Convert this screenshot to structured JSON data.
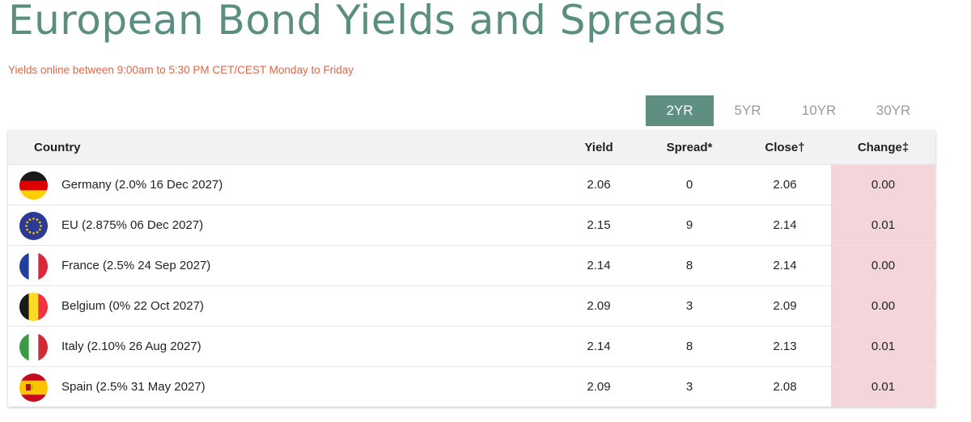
{
  "page": {
    "title": "European Bond Yields and Spreads",
    "subtitle": "Yields online between 9:00am to 5:30 PM CET/CEST Monday to Friday"
  },
  "tabs": [
    {
      "label": "2YR",
      "active": true
    },
    {
      "label": "5YR",
      "active": false
    },
    {
      "label": "10YR",
      "active": false
    },
    {
      "label": "30YR",
      "active": false
    }
  ],
  "table": {
    "headers": {
      "country": "Country",
      "yield": "Yield",
      "spread": "Spread*",
      "close": "Close†",
      "change": "Change‡"
    },
    "rows": [
      {
        "flag": "germany-flag-icon",
        "country": "Germany (2.0% 16 Dec 2027)",
        "yield": "2.06",
        "spread": "0",
        "close": "2.06",
        "change": "0.00"
      },
      {
        "flag": "eu-flag-icon",
        "country": "EU (2.875% 06 Dec 2027)",
        "yield": "2.15",
        "spread": "9",
        "close": "2.14",
        "change": "0.01"
      },
      {
        "flag": "france-flag-icon",
        "country": "France (2.5% 24 Sep 2027)",
        "yield": "2.14",
        "spread": "8",
        "close": "2.14",
        "change": "0.00"
      },
      {
        "flag": "belgium-flag-icon",
        "country": "Belgium (0% 22 Oct 2027)",
        "yield": "2.09",
        "spread": "3",
        "close": "2.09",
        "change": "0.00"
      },
      {
        "flag": "italy-flag-icon",
        "country": "Italy (2.10% 26 Aug 2027)",
        "yield": "2.14",
        "spread": "8",
        "close": "2.13",
        "change": "0.01"
      },
      {
        "flag": "spain-flag-icon",
        "country": "Spain (2.5% 31 May 2027)",
        "yield": "2.09",
        "spread": "3",
        "close": "2.08",
        "change": "0.01"
      }
    ]
  },
  "colors": {
    "accent": "#5e8f81",
    "subtitle": "#d8694a",
    "change_bg": "#f4d6da"
  }
}
